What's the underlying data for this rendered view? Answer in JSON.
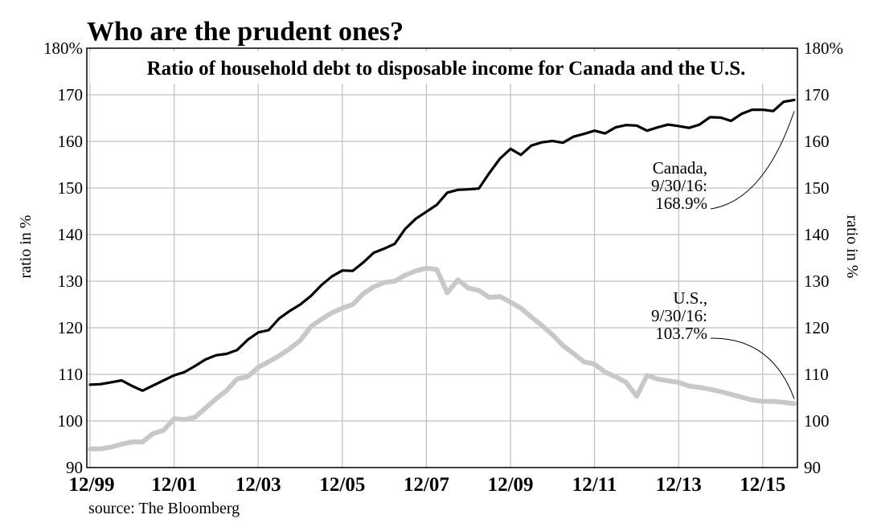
{
  "page_title": "Who are the prudent ones?",
  "source_note": "source: The Bloomberg",
  "chart_data": {
    "type": "line",
    "title": "Ratio of household debt to disposable income for Canada and the U.S.",
    "ylabel_left": "ratio in %",
    "ylabel_right": "ratio in %",
    "ylim": [
      90,
      180
    ],
    "y_ticks": [
      90,
      100,
      110,
      120,
      130,
      140,
      150,
      160,
      170,
      180
    ],
    "y_tick_labels": [
      "90",
      "100",
      "110",
      "120",
      "130",
      "140",
      "150",
      "160",
      "170",
      "180%"
    ],
    "x_range": [
      "1999-12-31",
      "2016-09-30"
    ],
    "x_ticks": [
      "12/99",
      "12/01",
      "12/03",
      "12/05",
      "12/07",
      "12/09",
      "12/11",
      "12/13",
      "12/15"
    ],
    "grid": true,
    "colors": {
      "Canada": "#000000",
      "U.S.": "#c8c8c8",
      "grid": "#bfbfbf"
    },
    "series": [
      {
        "name": "Canada",
        "x": [
          "1999-12-31",
          "2000-03-31",
          "2000-06-30",
          "2000-09-30",
          "2000-12-31",
          "2001-03-31",
          "2001-06-30",
          "2001-09-30",
          "2001-12-31",
          "2002-03-31",
          "2002-06-30",
          "2002-09-30",
          "2002-12-31",
          "2003-03-31",
          "2003-06-30",
          "2003-09-30",
          "2003-12-31",
          "2004-03-31",
          "2004-06-30",
          "2004-09-30",
          "2004-12-31",
          "2005-03-31",
          "2005-06-30",
          "2005-09-30",
          "2005-12-31",
          "2006-03-31",
          "2006-06-30",
          "2006-09-30",
          "2006-12-31",
          "2007-03-31",
          "2007-06-30",
          "2007-09-30",
          "2007-12-31",
          "2008-03-31",
          "2008-06-30",
          "2008-09-30",
          "2008-12-31",
          "2009-03-31",
          "2009-06-30",
          "2009-09-30",
          "2009-12-31",
          "2010-03-31",
          "2010-06-30",
          "2010-09-30",
          "2010-12-31",
          "2011-03-31",
          "2011-06-30",
          "2011-09-30",
          "2011-12-31",
          "2012-03-31",
          "2012-06-30",
          "2012-09-30",
          "2012-12-31",
          "2013-03-31",
          "2013-06-30",
          "2013-09-30",
          "2013-12-31",
          "2014-03-31",
          "2014-06-30",
          "2014-09-30",
          "2014-12-31",
          "2015-03-31",
          "2015-06-30",
          "2015-09-30",
          "2015-12-31",
          "2016-03-31",
          "2016-06-30",
          "2016-09-30"
        ],
        "values": [
          107.8,
          107.9,
          108.3,
          108.7,
          107.5,
          106.5,
          107.6,
          108.7,
          109.8,
          110.5,
          111.8,
          113.2,
          114.1,
          114.4,
          115.2,
          117.4,
          119.0,
          119.5,
          122.0,
          123.6,
          125.0,
          126.8,
          129.1,
          131.0,
          132.3,
          132.2,
          134.0,
          136.1,
          137.0,
          138.0,
          141.2,
          143.4,
          144.9,
          146.4,
          149.0,
          149.6,
          149.7,
          149.9,
          153.2,
          156.3,
          158.4,
          157.1,
          159.1,
          159.8,
          160.1,
          159.7,
          161.0,
          161.6,
          162.3,
          161.7,
          163.0,
          163.5,
          163.4,
          162.3,
          163.0,
          163.6,
          163.3,
          162.9,
          163.6,
          165.2,
          165.1,
          164.4,
          165.9,
          166.8,
          166.8,
          166.5,
          168.5,
          168.9
        ]
      },
      {
        "name": "U.S.",
        "x": [
          "1999-12-31",
          "2000-03-31",
          "2000-06-30",
          "2000-09-30",
          "2000-12-31",
          "2001-03-31",
          "2001-06-30",
          "2001-09-30",
          "2001-12-31",
          "2002-03-31",
          "2002-06-30",
          "2002-09-30",
          "2002-12-31",
          "2003-03-31",
          "2003-06-30",
          "2003-09-30",
          "2003-12-31",
          "2004-03-31",
          "2004-06-30",
          "2004-09-30",
          "2004-12-31",
          "2005-03-31",
          "2005-06-30",
          "2005-09-30",
          "2005-12-31",
          "2006-03-31",
          "2006-06-30",
          "2006-09-30",
          "2006-12-31",
          "2007-03-31",
          "2007-06-30",
          "2007-09-30",
          "2007-12-31",
          "2008-03-31",
          "2008-06-30",
          "2008-09-30",
          "2008-12-31",
          "2009-03-31",
          "2009-06-30",
          "2009-09-30",
          "2009-12-31",
          "2010-03-31",
          "2010-06-30",
          "2010-09-30",
          "2010-12-31",
          "2011-03-31",
          "2011-06-30",
          "2011-09-30",
          "2011-12-31",
          "2012-03-31",
          "2012-06-30",
          "2012-09-30",
          "2012-12-31",
          "2013-03-31",
          "2013-06-30",
          "2013-09-30",
          "2013-12-31",
          "2014-03-31",
          "2014-06-30",
          "2014-09-30",
          "2014-12-31",
          "2015-03-31",
          "2015-06-30",
          "2015-09-30",
          "2015-12-31",
          "2016-03-31",
          "2016-06-30",
          "2016-09-30"
        ],
        "values": [
          94.0,
          94.0,
          94.4,
          95.0,
          95.5,
          95.5,
          97.3,
          98.0,
          100.5,
          100.3,
          100.8,
          102.8,
          104.8,
          106.5,
          109.0,
          109.5,
          111.5,
          112.7,
          114.0,
          115.5,
          117.3,
          120.2,
          121.8,
          123.2,
          124.2,
          125.0,
          127.3,
          128.8,
          129.7,
          130.0,
          131.3,
          132.2,
          132.8,
          132.5,
          127.5,
          130.3,
          128.5,
          128.0,
          126.5,
          126.7,
          125.5,
          124.2,
          122.3,
          120.5,
          118.5,
          116.2,
          114.5,
          112.7,
          112.2,
          110.5,
          109.5,
          108.3,
          105.3,
          109.8,
          109.0,
          108.6,
          108.3,
          107.5,
          107.2,
          106.8,
          106.3,
          105.7,
          105.1,
          104.5,
          104.2,
          104.2,
          104.0,
          103.7
        ]
      }
    ],
    "annotations": [
      {
        "series": "Canada",
        "lines": [
          "Canada,",
          "9/30/16:",
          "168.9%"
        ]
      },
      {
        "series": "U.S.",
        "lines": [
          "U.S.,",
          "9/30/16:",
          "103.7%"
        ]
      }
    ]
  }
}
